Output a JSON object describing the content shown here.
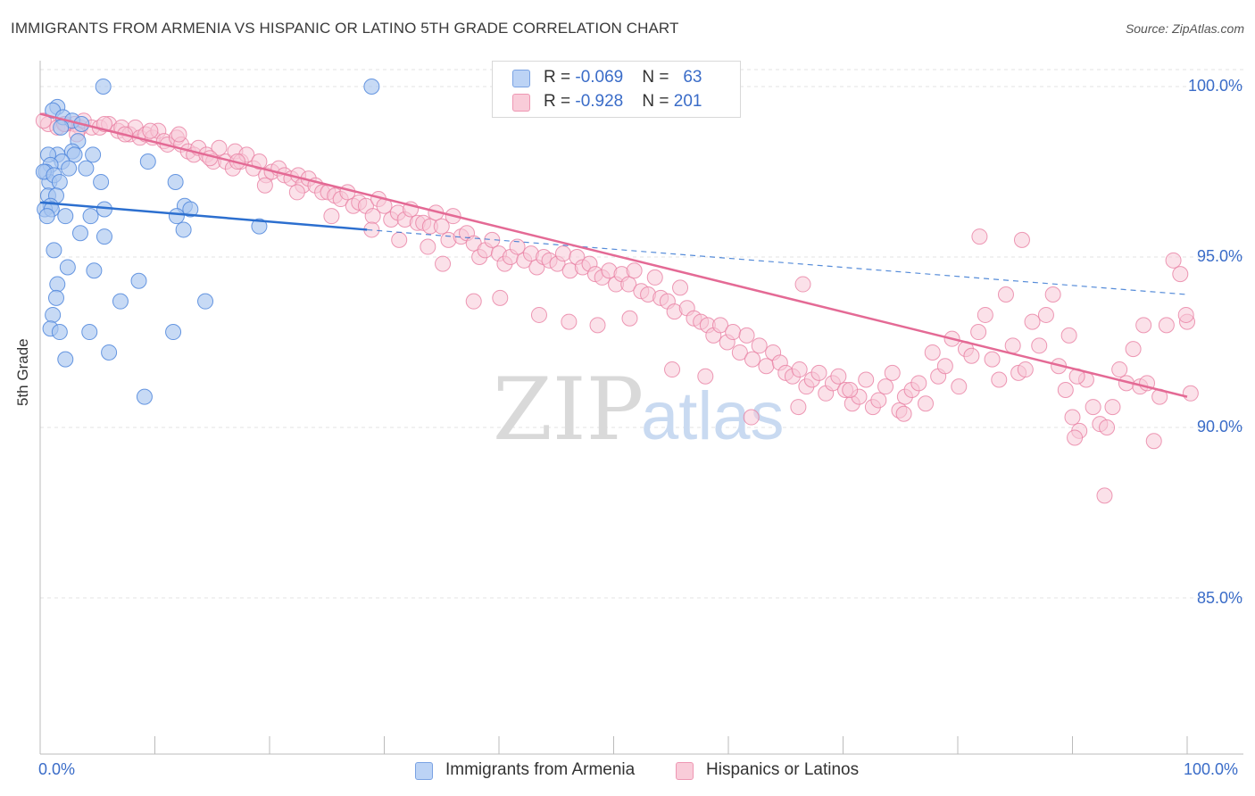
{
  "title": "IMMIGRANTS FROM ARMENIA VS HISPANIC OR LATINO 5TH GRADE CORRELATION CHART",
  "source": "Source: ZipAtlas.com",
  "watermark": {
    "zip": "ZIP",
    "atlas": "atlas"
  },
  "legend": {
    "rows": [
      {
        "r_label": "R = ",
        "r_value": "-0.069",
        "n_label": "N = ",
        "n_value": "63",
        "color": "#a9c6f0",
        "border": "#7aa2e3"
      },
      {
        "r_label": "R = ",
        "r_value": "-0.928",
        "n_label": "N = ",
        "n_value": "201",
        "color": "#f8c3d4",
        "border": "#ee97b3"
      }
    ]
  },
  "bottom_legend": [
    {
      "label": "Immigrants from Armenia",
      "color": "#bcd3f5",
      "border": "#7aa2e3"
    },
    {
      "label": "Hispanics or Latinos",
      "color": "#f9ccd9",
      "border": "#ee97b3"
    }
  ],
  "colors": {
    "blue_fill": "#a9c6f0",
    "blue_stroke": "#4f86dc",
    "blue_line": "#2c6fcf",
    "pink_fill": "#f8c8d7",
    "pink_stroke": "#e97fa2",
    "pink_line": "#e46a95",
    "grid": "#e3e3e3",
    "axis_text": "#3a6cc8"
  },
  "chart_data": {
    "type": "scatter",
    "title": "IMMIGRANTS FROM ARMENIA VS HISPANIC OR LATINO 5TH GRADE CORRELATION CHART",
    "xlabel": "",
    "ylabel": "5th Grade",
    "xlim": [
      0,
      100
    ],
    "ylim": [
      80,
      100.7
    ],
    "x_tick_labels": [
      "0.0%",
      "100.0%"
    ],
    "y_ticks": [
      {
        "value": 100,
        "label": "100.0%"
      },
      {
        "value": 95,
        "label": "95.0%"
      },
      {
        "value": 90,
        "label": "90.0%"
      },
      {
        "value": 85,
        "label": "85.0%"
      }
    ],
    "grid": "horizontal dashed",
    "legend_placement": "top-center",
    "series": [
      {
        "name": "Immigrants from Armenia",
        "trend": {
          "x": [
            0,
            28.5
          ],
          "y": [
            96.6,
            95.8
          ],
          "dashed_to": [
            100,
            93.9
          ]
        },
        "points": [
          [
            5.5,
            100.0
          ],
          [
            28.9,
            100.0
          ],
          [
            1.5,
            99.4
          ],
          [
            1.1,
            99.3
          ],
          [
            2.0,
            99.1
          ],
          [
            2.8,
            99.0
          ],
          [
            3.6,
            98.9
          ],
          [
            1.8,
            98.8
          ],
          [
            3.3,
            98.4
          ],
          [
            2.8,
            98.1
          ],
          [
            1.5,
            98.0
          ],
          [
            4.6,
            98.0
          ],
          [
            0.7,
            98.0
          ],
          [
            3.0,
            98.0
          ],
          [
            9.4,
            97.8
          ],
          [
            1.9,
            97.8
          ],
          [
            0.9,
            97.7
          ],
          [
            4.0,
            97.6
          ],
          [
            2.5,
            97.6
          ],
          [
            0.5,
            97.5
          ],
          [
            0.8,
            97.2
          ],
          [
            0.3,
            97.5
          ],
          [
            1.2,
            97.4
          ],
          [
            1.7,
            97.2
          ],
          [
            5.3,
            97.2
          ],
          [
            11.8,
            97.2
          ],
          [
            0.7,
            96.8
          ],
          [
            1.4,
            96.8
          ],
          [
            0.9,
            96.5
          ],
          [
            0.4,
            96.4
          ],
          [
            1.0,
            96.4
          ],
          [
            2.2,
            96.2
          ],
          [
            5.6,
            96.4
          ],
          [
            12.6,
            96.5
          ],
          [
            13.1,
            96.4
          ],
          [
            4.4,
            96.2
          ],
          [
            11.9,
            96.2
          ],
          [
            0.6,
            96.2
          ],
          [
            12.5,
            95.8
          ],
          [
            19.1,
            95.9
          ],
          [
            3.5,
            95.7
          ],
          [
            5.6,
            95.6
          ],
          [
            1.2,
            95.2
          ],
          [
            2.4,
            94.7
          ],
          [
            4.7,
            94.6
          ],
          [
            8.6,
            94.3
          ],
          [
            1.5,
            94.2
          ],
          [
            1.4,
            93.8
          ],
          [
            7.0,
            93.7
          ],
          [
            14.4,
            93.7
          ],
          [
            1.1,
            93.3
          ],
          [
            0.9,
            92.9
          ],
          [
            1.7,
            92.8
          ],
          [
            4.3,
            92.8
          ],
          [
            11.6,
            92.8
          ],
          [
            6.0,
            92.2
          ],
          [
            2.2,
            92.0
          ],
          [
            9.1,
            90.9
          ]
        ]
      },
      {
        "name": "Hispanics or Latinos",
        "trend": {
          "x": [
            0,
            100
          ],
          "y": [
            99.2,
            90.9
          ]
        },
        "points": [
          [
            0.7,
            98.9
          ],
          [
            1.5,
            98.8
          ],
          [
            2.2,
            98.9
          ],
          [
            3.0,
            98.9
          ],
          [
            3.5,
            98.8
          ],
          [
            3.8,
            99.0
          ],
          [
            4.5,
            98.8
          ],
          [
            5.2,
            98.8
          ],
          [
            6.0,
            98.9
          ],
          [
            6.8,
            98.7
          ],
          [
            7.1,
            98.8
          ],
          [
            7.8,
            98.6
          ],
          [
            8.3,
            98.8
          ],
          [
            8.7,
            98.5
          ],
          [
            9.2,
            98.6
          ],
          [
            9.8,
            98.5
          ],
          [
            10.3,
            98.7
          ],
          [
            10.8,
            98.4
          ],
          [
            11.1,
            98.3
          ],
          [
            11.9,
            98.5
          ],
          [
            12.3,
            98.3
          ],
          [
            12.9,
            98.1
          ],
          [
            13.4,
            98.0
          ],
          [
            13.8,
            98.2
          ],
          [
            14.5,
            98.0
          ],
          [
            15.1,
            97.8
          ],
          [
            15.6,
            98.2
          ],
          [
            16.2,
            97.8
          ],
          [
            16.8,
            97.6
          ],
          [
            17.0,
            98.1
          ],
          [
            17.5,
            97.8
          ],
          [
            18.0,
            98.0
          ],
          [
            18.6,
            97.6
          ],
          [
            19.1,
            97.8
          ],
          [
            19.7,
            97.4
          ],
          [
            20.2,
            97.5
          ],
          [
            20.8,
            97.6
          ],
          [
            21.3,
            97.4
          ],
          [
            21.9,
            97.3
          ],
          [
            22.5,
            97.4
          ],
          [
            22.9,
            97.1
          ],
          [
            23.4,
            97.3
          ],
          [
            24.0,
            97.1
          ],
          [
            24.6,
            96.9
          ],
          [
            25.1,
            96.9
          ],
          [
            25.7,
            96.8
          ],
          [
            26.2,
            96.7
          ],
          [
            26.8,
            96.9
          ],
          [
            27.3,
            96.5
          ],
          [
            27.8,
            96.6
          ],
          [
            28.4,
            96.5
          ],
          [
            29.0,
            96.2
          ],
          [
            29.5,
            96.7
          ],
          [
            30.0,
            96.5
          ],
          [
            30.6,
            96.1
          ],
          [
            31.2,
            96.3
          ],
          [
            31.8,
            96.1
          ],
          [
            32.3,
            96.4
          ],
          [
            32.9,
            96.0
          ],
          [
            33.4,
            96.0
          ],
          [
            34.0,
            95.9
          ],
          [
            34.5,
            96.3
          ],
          [
            35.0,
            95.9
          ],
          [
            35.6,
            95.5
          ],
          [
            36.0,
            96.2
          ],
          [
            36.7,
            95.6
          ],
          [
            37.2,
            95.7
          ],
          [
            37.8,
            95.4
          ],
          [
            38.3,
            95.0
          ],
          [
            38.8,
            95.2
          ],
          [
            39.4,
            95.5
          ],
          [
            40.0,
            95.1
          ],
          [
            40.5,
            94.8
          ],
          [
            41.0,
            95.0
          ],
          [
            41.6,
            95.3
          ],
          [
            42.2,
            94.9
          ],
          [
            42.8,
            95.1
          ],
          [
            43.3,
            94.7
          ],
          [
            43.9,
            95.0
          ],
          [
            44.4,
            94.9
          ],
          [
            45.1,
            94.8
          ],
          [
            45.6,
            95.1
          ],
          [
            46.2,
            94.6
          ],
          [
            46.8,
            95.0
          ],
          [
            47.3,
            94.7
          ],
          [
            47.9,
            94.8
          ],
          [
            48.4,
            94.5
          ],
          [
            49.0,
            94.4
          ],
          [
            49.6,
            94.6
          ],
          [
            50.2,
            94.2
          ],
          [
            50.7,
            94.5
          ],
          [
            51.3,
            94.2
          ],
          [
            51.8,
            94.6
          ],
          [
            52.4,
            94.0
          ],
          [
            53.0,
            93.9
          ],
          [
            53.6,
            94.4
          ],
          [
            54.1,
            93.8
          ],
          [
            54.7,
            93.7
          ],
          [
            55.3,
            93.4
          ],
          [
            55.8,
            94.1
          ],
          [
            56.4,
            93.5
          ],
          [
            57.0,
            93.2
          ],
          [
            57.6,
            93.1
          ],
          [
            58.2,
            93.0
          ],
          [
            58.7,
            92.7
          ],
          [
            59.3,
            93.0
          ],
          [
            59.9,
            92.5
          ],
          [
            60.4,
            92.8
          ],
          [
            61.0,
            92.2
          ],
          [
            61.6,
            92.7
          ],
          [
            62.1,
            92.0
          ],
          [
            62.7,
            92.4
          ],
          [
            63.3,
            91.8
          ],
          [
            63.9,
            92.2
          ],
          [
            64.5,
            91.9
          ],
          [
            65.0,
            91.6
          ],
          [
            65.6,
            91.5
          ],
          [
            66.2,
            91.7
          ],
          [
            66.8,
            91.2
          ],
          [
            67.3,
            91.4
          ],
          [
            67.9,
            91.6
          ],
          [
            68.5,
            91.0
          ],
          [
            69.1,
            91.3
          ],
          [
            69.6,
            91.5
          ],
          [
            70.2,
            91.1
          ],
          [
            70.8,
            90.7
          ],
          [
            71.4,
            90.9
          ],
          [
            72.0,
            91.4
          ],
          [
            72.6,
            90.6
          ],
          [
            73.1,
            90.8
          ],
          [
            73.7,
            91.2
          ],
          [
            74.3,
            91.6
          ],
          [
            74.9,
            90.5
          ],
          [
            75.4,
            90.9
          ],
          [
            76.0,
            91.1
          ],
          [
            76.6,
            91.3
          ],
          [
            77.2,
            90.7
          ],
          [
            77.8,
            92.2
          ],
          [
            78.3,
            91.5
          ],
          [
            78.9,
            91.8
          ],
          [
            79.5,
            92.6
          ],
          [
            80.1,
            91.2
          ],
          [
            80.7,
            92.3
          ],
          [
            81.2,
            92.1
          ],
          [
            81.8,
            92.8
          ],
          [
            82.4,
            93.3
          ],
          [
            83.0,
            92.0
          ],
          [
            83.6,
            91.4
          ],
          [
            84.2,
            93.9
          ],
          [
            84.8,
            92.4
          ],
          [
            85.3,
            91.6
          ],
          [
            85.9,
            91.7
          ],
          [
            86.5,
            93.1
          ],
          [
            87.1,
            92.4
          ],
          [
            87.7,
            93.3
          ],
          [
            88.3,
            93.9
          ],
          [
            88.8,
            91.8
          ],
          [
            89.4,
            91.1
          ],
          [
            90.0,
            90.3
          ],
          [
            90.6,
            89.9
          ],
          [
            91.2,
            91.4
          ],
          [
            91.8,
            90.6
          ],
          [
            92.4,
            90.1
          ],
          [
            93.0,
            90.0
          ],
          [
            93.5,
            90.6
          ],
          [
            94.1,
            91.7
          ],
          [
            94.7,
            91.3
          ],
          [
            95.3,
            92.3
          ],
          [
            95.9,
            91.2
          ],
          [
            96.5,
            91.3
          ],
          [
            97.1,
            89.6
          ],
          [
            97.6,
            90.9
          ],
          [
            98.2,
            93.0
          ],
          [
            98.8,
            94.9
          ],
          [
            99.4,
            94.5
          ],
          [
            100.0,
            93.1
          ],
          [
            100.3,
            91.0
          ],
          [
            75.3,
            90.4
          ],
          [
            70.6,
            91.1
          ],
          [
            66.1,
            90.6
          ],
          [
            62.0,
            90.3
          ],
          [
            58.0,
            91.5
          ],
          [
            55.1,
            91.7
          ],
          [
            51.4,
            93.2
          ],
          [
            48.6,
            93.0
          ],
          [
            46.1,
            93.1
          ],
          [
            43.5,
            93.3
          ],
          [
            40.1,
            93.8
          ],
          [
            37.8,
            93.7
          ],
          [
            35.1,
            94.8
          ],
          [
            33.8,
            95.3
          ],
          [
            31.3,
            95.5
          ],
          [
            28.9,
            95.8
          ],
          [
            25.4,
            96.2
          ],
          [
            22.4,
            96.9
          ],
          [
            19.6,
            97.1
          ],
          [
            17.2,
            97.8
          ],
          [
            14.8,
            97.9
          ],
          [
            12.1,
            98.6
          ],
          [
            9.6,
            98.7
          ],
          [
            7.4,
            98.6
          ],
          [
            5.6,
            98.9
          ],
          [
            3.2,
            98.6
          ],
          [
            2.1,
            98.9
          ],
          [
            0.3,
            99.0
          ],
          [
            66.5,
            94.2
          ],
          [
            81.9,
            95.6
          ],
          [
            85.6,
            95.5
          ],
          [
            90.2,
            89.7
          ],
          [
            92.8,
            88.0
          ],
          [
            96.2,
            93.0
          ],
          [
            99.9,
            93.3
          ],
          [
            90.4,
            91.5
          ],
          [
            89.7,
            92.7
          ]
        ]
      }
    ]
  }
}
